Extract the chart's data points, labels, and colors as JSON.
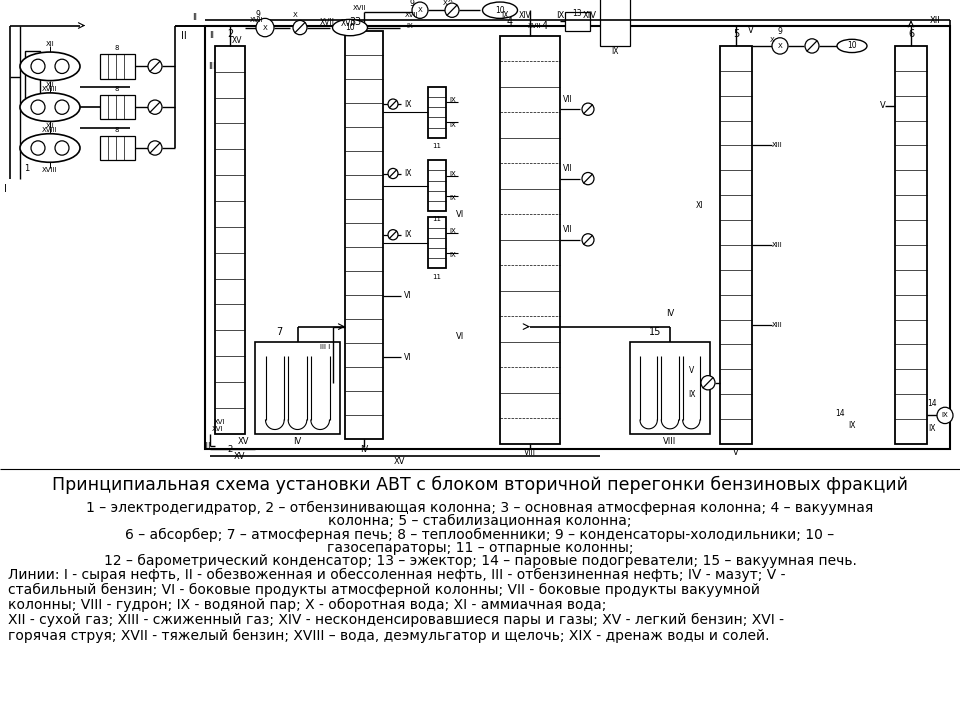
{
  "title": "Принципиальная схема установки АВТ с блоком вторичной перегонки бензиновых фракций",
  "title_fontsize": 12.5,
  "legend_centered": [
    "1 – электродегидратор, 2 – отбензинивающая колонна; 3 – основная атмосферная колонна; 4 – вакуумная",
    "колонна; 5 – стабилизационная колонна;",
    "6 – абсорбер; 7 – атмосферная печь; 8 – теплообменники; 9 – конденсаторы-холодильники; 10 –",
    "газосепараторы; 11 – отпарные колонны;",
    "12 – барометрический конденсатор; 13 – эжектор; 14 – паровые подогреватели; 15 – вакуумная печь."
  ],
  "legend_left": [
    "Линии: I - сырая нефть, II - обезвоженная и обессоленная нефть, III - отбензиненная нефть; IV - мазут; V -",
    "стабильный бензин; VI - боковые продукты атмосферной колонны; VII - боковые продукты вакуумной",
    "колонны; VIII - гудрон; IX - водяной пар; X - оборотная вода; XI - аммиачная вода;",
    "XII - сухой газ; XIII - сжиженный газ; XIV - несконденсировавшиеся пары и газы; XV - легкий бензин; XVI -",
    "горячая струя; XVII - тяжелый бензин; XVIII – вода, деэмульгатор и щелочь; XIX - дренаж воды и солей."
  ],
  "legend_fontsize": 10,
  "bg_color": "#ffffff",
  "text_color": "#000000"
}
